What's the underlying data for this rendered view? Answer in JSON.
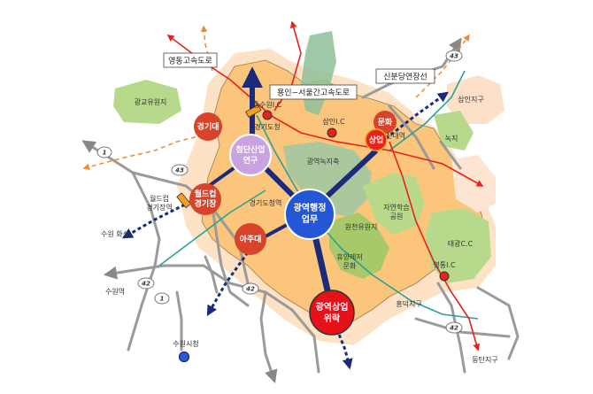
{
  "callouts": [
    "영동고속도로",
    "용인~서울간고속도로",
    "신분당연장선"
  ],
  "shields": [
    "1",
    "43",
    "42",
    "1",
    "42",
    "43",
    "42"
  ],
  "nodes": {
    "kyonggi": "경기대",
    "worldcup_1": "월드컵",
    "worldcup_2": "경기장",
    "ajou": "아주대",
    "munhwa": "문화",
    "sangeop": "상업"
  },
  "hubs": {
    "hightech_1": "첨단산업",
    "hightech_2": "연구",
    "admin_1": "광역행정",
    "admin_2": "업무",
    "commerce_1": "광역상업",
    "commerce_2": "위락"
  },
  "labels": {
    "gwanggyo_park": "광교유원지",
    "dongsuwon_ic": "동수원I.C",
    "gyeonggi_hall": "경기도청",
    "samin_ic": "삼인I.C",
    "sindae_station": "신대역",
    "samin_district": "삼인지구",
    "greenbelt": "녹지",
    "central_green": "광역녹지축",
    "worldcup_1": "월드컵",
    "worldcup_2": "경기장역",
    "gyeonggi_station": "경기도청역",
    "leisure_1": "자연학습",
    "leisure_2": "공원",
    "heungcheon_park": "원천유원지",
    "leisure_culture_1": "휴양레저",
    "leisure_culture_2": "문화",
    "taegwang_cc": "태광C.C",
    "yeongtong_station": "영통I.C",
    "heungdeok": "흥덕지구",
    "suwon_hwaseong": "수원 화성",
    "suwon_station": "수원역",
    "suwon_city_hall": "수원시청",
    "dongtan": "동탄지구"
  }
}
